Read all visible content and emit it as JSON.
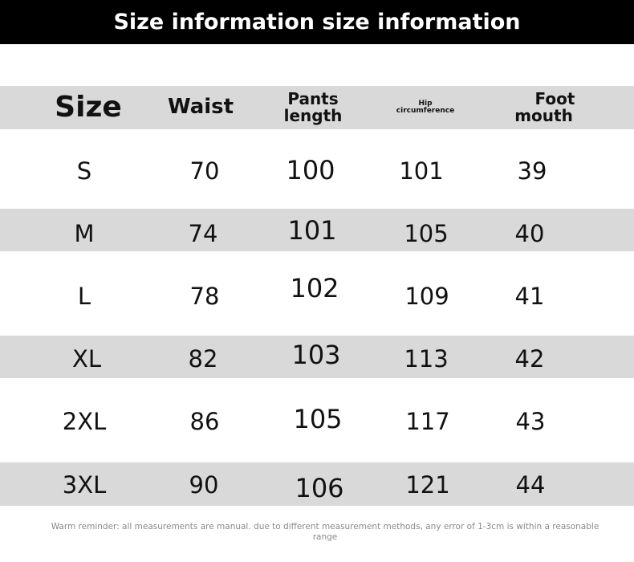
{
  "title": "Size information size information",
  "headers": [
    {
      "line1": "Size",
      "line2": ""
    },
    {
      "line1": "Waist",
      "line2": ""
    },
    {
      "line1": "Pants",
      "line2": "length"
    },
    {
      "line1": "Hip",
      "line2": "circumference"
    },
    {
      "line1": "Foot",
      "line2": "mouth"
    }
  ],
  "rows": [
    [
      "S",
      "70",
      "100",
      "101",
      "39"
    ],
    [
      "M",
      "74",
      "101",
      "105",
      "40"
    ],
    [
      "L",
      "78",
      "102",
      "109",
      "41"
    ],
    [
      "XL",
      "82",
      "103",
      "113",
      "42"
    ],
    [
      "2XL",
      "86",
      "105",
      "117",
      "43"
    ],
    [
      "3XL",
      "90",
      "106",
      "121",
      "44"
    ]
  ],
  "footer": "Warm reminder: all measurements are manual. due to different measurement methods, any error of 1-3cm is within a reasonable range"
}
